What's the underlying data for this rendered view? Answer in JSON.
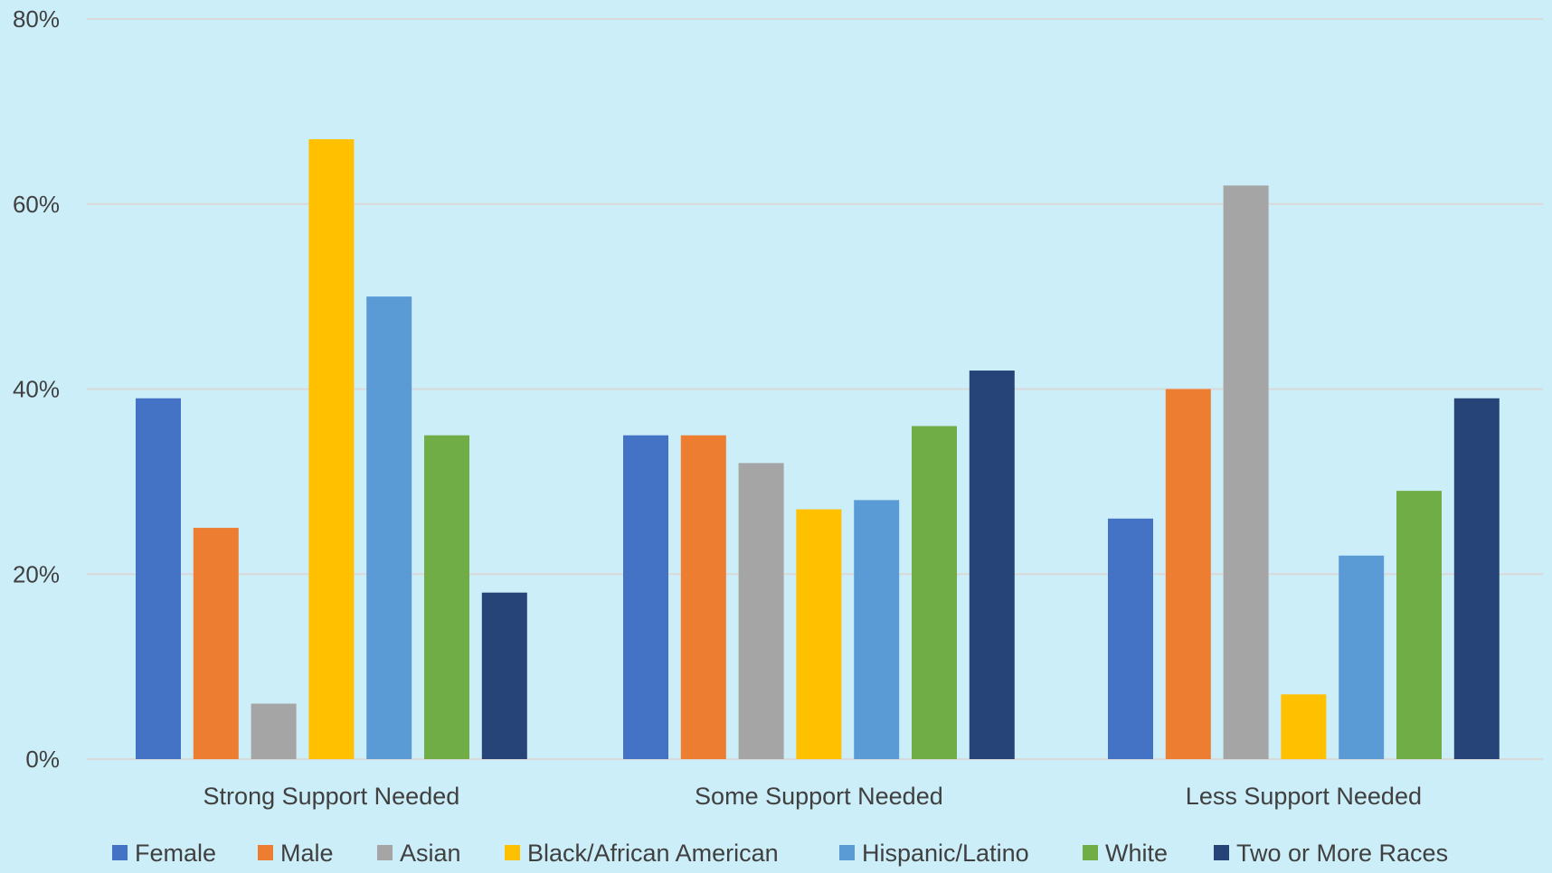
{
  "chart_data": {
    "type": "bar",
    "title": "",
    "xlabel": "",
    "ylabel": "",
    "categories": [
      "Strong Support Needed",
      "Some Support Needed",
      "Less Support Needed"
    ],
    "ylim": [
      0,
      80
    ],
    "yticks": [
      "0%",
      "20%",
      "40%",
      "60%",
      "80%"
    ],
    "ytick_values": [
      0,
      20,
      40,
      60,
      80
    ],
    "grid": true,
    "legend_position": "bottom",
    "series": [
      {
        "name": "Female",
        "color": "#4472C4",
        "values": [
          39,
          35,
          26
        ]
      },
      {
        "name": "Male",
        "color": "#ED7D31",
        "values": [
          25,
          35,
          40
        ]
      },
      {
        "name": "Asian",
        "color": "#A5A5A5",
        "values": [
          6,
          32,
          62
        ]
      },
      {
        "name": "Black/African American",
        "color": "#FFC000",
        "values": [
          67,
          27,
          7
        ]
      },
      {
        "name": "Hispanic/Latino",
        "color": "#5B9BD5",
        "values": [
          50,
          28,
          22
        ]
      },
      {
        "name": "White",
        "color": "#70AD47",
        "values": [
          35,
          36,
          29
        ]
      },
      {
        "name": "Two or More Races",
        "color": "#264478",
        "values": [
          18,
          42,
          39
        ]
      }
    ]
  }
}
